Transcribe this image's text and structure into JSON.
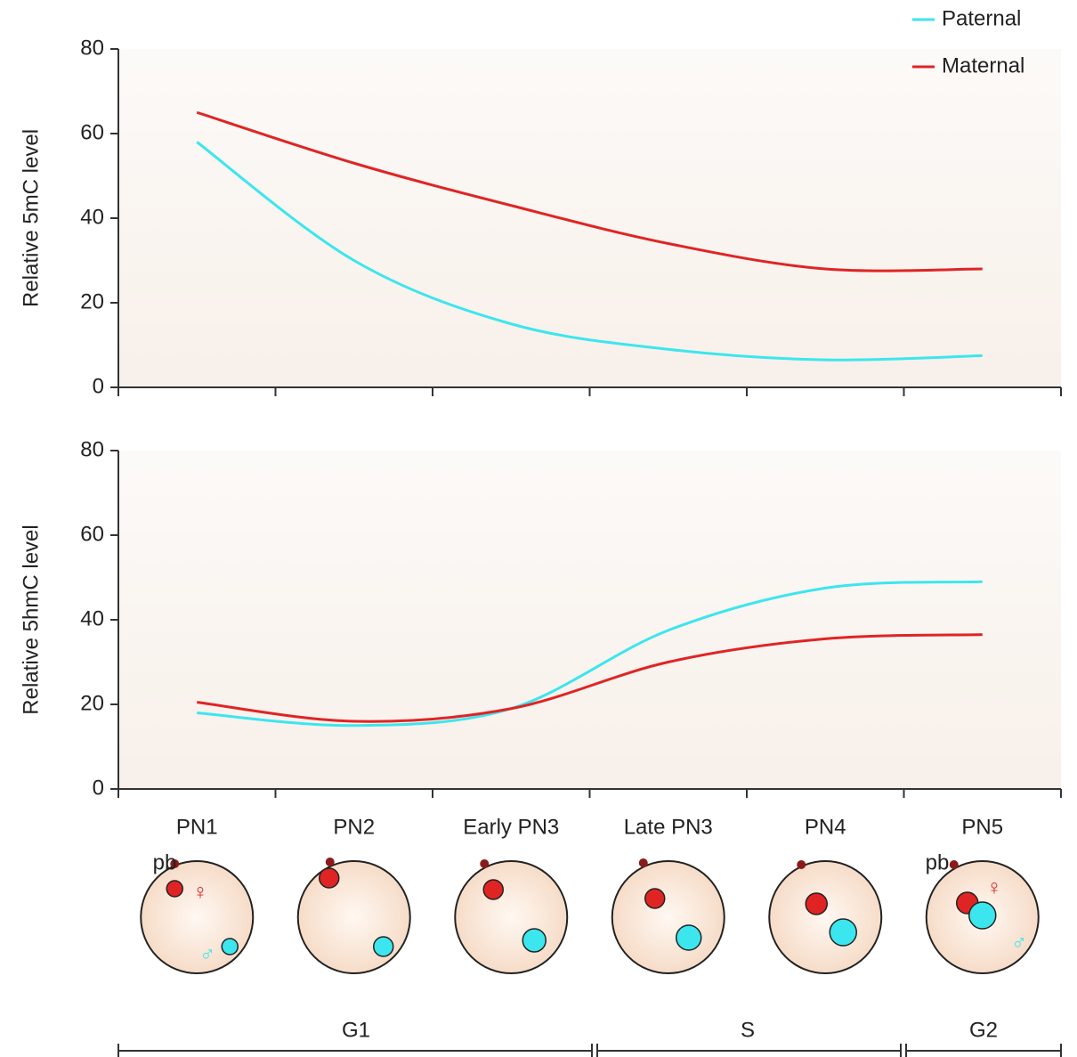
{
  "chart_data": [
    {
      "type": "line",
      "y_label": "Relative 5mC level",
      "categories": [
        null,
        null,
        null,
        null,
        null,
        null
      ],
      "series": [
        {
          "name": "Paternal",
          "color": "#3ce6ee",
          "values": [
            58,
            30,
            15,
            9,
            6.5,
            7.5
          ]
        },
        {
          "name": "Maternal",
          "color": "#e02424",
          "values": [
            65,
            53,
            43,
            34,
            28,
            28
          ]
        }
      ],
      "ylim": [
        0,
        80
      ],
      "yticks": [
        0,
        20,
        40,
        60,
        80
      ],
      "legend": "upper right"
    },
    {
      "type": "line",
      "y_label": "Relative 5hmC level",
      "categories": [
        "PN1",
        "PN2",
        "Early PN3",
        "Late PN3",
        "PN4",
        "PN5"
      ],
      "series": [
        {
          "name": "Paternal",
          "color": "#3ce6ee",
          "values": [
            18,
            15,
            19,
            37.5,
            47.5,
            49
          ]
        },
        {
          "name": "Maternal",
          "color": "#e02424",
          "values": [
            20.5,
            16,
            19,
            30,
            35.5,
            36.5
          ]
        }
      ],
      "ylim": [
        0,
        80
      ],
      "yticks": [
        0,
        20,
        40,
        60,
        80
      ]
    }
  ],
  "cell_labels": {
    "polar_body": "pb",
    "female": "♀",
    "male": "♂"
  },
  "phases": [
    "G1",
    "S",
    "G2"
  ]
}
